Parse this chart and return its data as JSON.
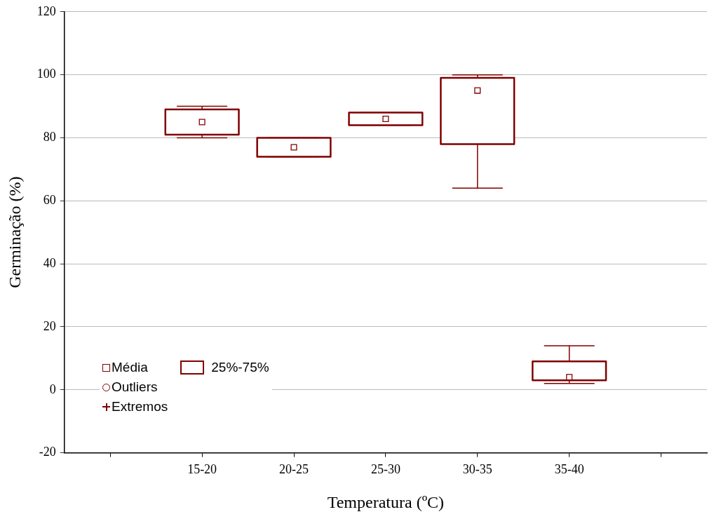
{
  "chart_data": {
    "type": "box",
    "xlabel": "Temperatura (ºC)",
    "ylabel": "Germinação (%)",
    "categories": [
      null,
      "15-20",
      "20-25",
      "25-30",
      "30-35",
      "35-40",
      null
    ],
    "ylim": [
      -20,
      120
    ],
    "yticks": [
      -20,
      0,
      20,
      40,
      60,
      80,
      100,
      120
    ],
    "grid": "y",
    "legend": "bottom left",
    "series": [
      {
        "name": "Média",
        "type": "scatter",
        "color": "#800000",
        "marker": "square",
        "x": [
          "15-20",
          "20-25",
          "25-30",
          "30-35",
          "35-40"
        ],
        "values": [
          85,
          77,
          86,
          95,
          4
        ]
      },
      {
        "name": "Outliers",
        "type": "scatter",
        "color": "#800000",
        "marker": "circle",
        "values": [
          null,
          null,
          null,
          null,
          null,
          null,
          null
        ]
      },
      {
        "name": "Extremos",
        "type": "scatter",
        "color": "#800000",
        "marker": "cross",
        "values": [
          null,
          null,
          null,
          null,
          null,
          null,
          null
        ]
      },
      {
        "name": "25%-75%",
        "type": "box",
        "color": "#800000",
        "boxes": [
          null,
          {
            "low": 80,
            "q1": 81,
            "q3": 89,
            "high": 90
          },
          {
            "low": 74,
            "q1": 74,
            "q3": 80,
            "high": 80
          },
          {
            "low": 84,
            "q1": 84,
            "q3": 88,
            "high": 88
          },
          {
            "low": 64,
            "q1": 78,
            "q3": 99,
            "high": 100
          },
          {
            "low": 2,
            "q1": 3,
            "q3": 9,
            "high": 14
          },
          null
        ]
      }
    ]
  }
}
